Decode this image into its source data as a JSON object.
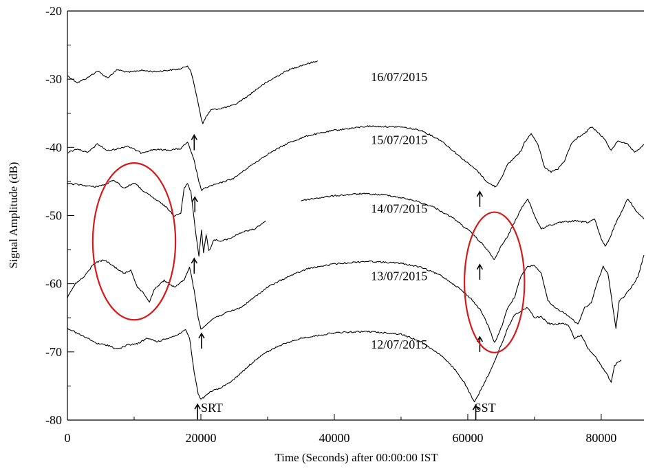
{
  "colors": {
    "line": "#000000",
    "highlight": "#d41a1a",
    "background": "#ffffff"
  },
  "chart_data": {
    "type": "line",
    "title": "",
    "xlabel": "Time (Seconds) after 00:00:00 IST",
    "ylabel": "Signal Amplitude (dB)",
    "xlim": [
      0,
      86400
    ],
    "ylim": [
      -80,
      -20
    ],
    "x_ticks": [
      0,
      20000,
      40000,
      60000,
      80000
    ],
    "y_ticks": [
      -20,
      -30,
      -40,
      -50,
      -60,
      -70,
      -80
    ],
    "grid": false,
    "series": [
      {
        "name": "16/07/2015",
        "points": [
          [
            0,
            -29.5
          ],
          [
            1500,
            -30.5
          ],
          [
            3000,
            -29.8
          ],
          [
            4500,
            -28.8
          ],
          [
            6000,
            -29.8
          ],
          [
            7500,
            -28.6
          ],
          [
            9000,
            -29.0
          ],
          [
            11000,
            -28.7
          ],
          [
            13000,
            -28.9
          ],
          [
            15000,
            -28.7
          ],
          [
            17000,
            -28.5
          ],
          [
            18000,
            -28.0
          ],
          [
            18500,
            -28.8
          ],
          [
            19500,
            -33
          ],
          [
            20000,
            -35.5
          ],
          [
            20300,
            -36.5
          ],
          [
            20800,
            -35.5
          ],
          [
            21500,
            -34.5
          ],
          [
            23000,
            -34.3
          ],
          [
            25000,
            -33.8
          ],
          [
            27000,
            -32.5
          ],
          [
            29000,
            -31.0
          ],
          [
            31000,
            -29.8
          ],
          [
            33000,
            -28.7
          ],
          [
            35000,
            -28.0
          ],
          [
            37500,
            -27.3
          ]
        ]
      },
      {
        "name": "15/07/2015",
        "points": [
          [
            0,
            -40.8
          ],
          [
            1500,
            -40.2
          ],
          [
            3000,
            -40.8
          ],
          [
            4500,
            -39.5
          ],
          [
            6000,
            -40.5
          ],
          [
            7500,
            -40.2
          ],
          [
            9000,
            -39.8
          ],
          [
            11000,
            -40.8
          ],
          [
            13000,
            -40.3
          ],
          [
            15000,
            -40.4
          ],
          [
            17000,
            -40.2
          ],
          [
            18000,
            -39.2
          ],
          [
            19000,
            -42
          ],
          [
            19700,
            -45
          ],
          [
            20100,
            -46.3
          ],
          [
            21000,
            -45.8
          ],
          [
            23000,
            -45.2
          ],
          [
            25000,
            -44.5
          ],
          [
            27000,
            -43.0
          ],
          [
            30000,
            -41.0
          ],
          [
            33000,
            -39.4
          ],
          [
            36000,
            -38.3
          ],
          [
            40000,
            -37.5
          ],
          [
            45000,
            -36.9
          ],
          [
            50000,
            -37.0
          ],
          [
            53000,
            -37.5
          ],
          [
            56000,
            -39.0
          ],
          [
            59000,
            -41.5
          ],
          [
            61500,
            -43.5
          ],
          [
            63000,
            -45.2
          ],
          [
            64200,
            -45.8
          ],
          [
            65000,
            -44.5
          ],
          [
            66000,
            -42.5
          ],
          [
            67000,
            -41.5
          ],
          [
            68000,
            -40.5
          ],
          [
            68500,
            -39.3
          ],
          [
            69500,
            -37.9
          ],
          [
            70500,
            -39.5
          ],
          [
            71500,
            -43.0
          ],
          [
            72500,
            -43.6
          ],
          [
            73500,
            -43.2
          ],
          [
            74500,
            -42.0
          ],
          [
            75500,
            -39.5
          ],
          [
            76500,
            -38.5
          ],
          [
            77500,
            -38.0
          ],
          [
            78500,
            -37.0
          ],
          [
            79500,
            -37.8
          ],
          [
            80500,
            -38.8
          ],
          [
            81500,
            -40.5
          ],
          [
            82500,
            -39.0
          ],
          [
            84000,
            -39.6
          ],
          [
            85000,
            -40.8
          ],
          [
            86400,
            -39.6
          ]
        ]
      },
      {
        "name": "14/07/2015",
        "points": [
          [
            0,
            -45.3
          ],
          [
            2000,
            -45.5
          ],
          [
            4000,
            -45.8
          ],
          [
            5500,
            -45.5
          ],
          [
            7000,
            -44.8
          ],
          [
            8500,
            -46
          ],
          [
            10000,
            -45.2
          ],
          [
            11500,
            -46.5
          ],
          [
            13000,
            -47.5
          ],
          [
            14500,
            -48.5
          ],
          [
            16000,
            -50.0
          ],
          [
            17000,
            -49.6
          ],
          [
            17500,
            -46.0
          ],
          [
            18000,
            -45.3
          ],
          [
            18500,
            -46.5
          ],
          [
            19300,
            -53
          ],
          [
            19700,
            -56
          ],
          [
            20100,
            -52
          ],
          [
            20400,
            -55.5
          ],
          [
            20800,
            -52.8
          ],
          [
            21200,
            -55.2
          ],
          [
            22000,
            -53.5
          ],
          [
            23000,
            -53.8
          ],
          [
            24500,
            -53.3
          ],
          [
            26000,
            -52.5
          ],
          [
            28000,
            -52.0
          ],
          [
            29700,
            -50.8
          ]
        ]
      },
      {
        "name": "14/07/2015 (cont.)",
        "points": [
          [
            35000,
            -47.8
          ],
          [
            37000,
            -47.5
          ],
          [
            40000,
            -47.1
          ],
          [
            44000,
            -46.8
          ],
          [
            48000,
            -47.0
          ],
          [
            52000,
            -47.8
          ],
          [
            55000,
            -48.8
          ],
          [
            58000,
            -50.5
          ],
          [
            60500,
            -52.5
          ],
          [
            62500,
            -54.5
          ],
          [
            64000,
            -56.5
          ],
          [
            65000,
            -54.5
          ],
          [
            66000,
            -53.0
          ],
          [
            67000,
            -51.0
          ],
          [
            68000,
            -49.0
          ],
          [
            69000,
            -47.5
          ],
          [
            70000,
            -50.0
          ],
          [
            71000,
            -52.0
          ],
          [
            72000,
            -51.5
          ],
          [
            74000,
            -51.0
          ],
          [
            76000,
            -50.8
          ],
          [
            78000,
            -51.0
          ],
          [
            79000,
            -50.5
          ],
          [
            80000,
            -53.5
          ],
          [
            80600,
            -54.5
          ],
          [
            81200,
            -53.5
          ],
          [
            82000,
            -51.5
          ],
          [
            83000,
            -49.5
          ],
          [
            84000,
            -47.5
          ],
          [
            85000,
            -49.0
          ],
          [
            86400,
            -50.5
          ]
        ]
      },
      {
        "name": "13/07/2015",
        "points": [
          [
            0,
            -62.0
          ],
          [
            1200,
            -60.0
          ],
          [
            2500,
            -59.0
          ],
          [
            4000,
            -57.0
          ],
          [
            5500,
            -56.5
          ],
          [
            7000,
            -57.5
          ],
          [
            8500,
            -58.5
          ],
          [
            9500,
            -58.0
          ],
          [
            10500,
            -60.5
          ],
          [
            11500,
            -61.5
          ],
          [
            12300,
            -62.7
          ],
          [
            13000,
            -60.8
          ],
          [
            14500,
            -59.5
          ],
          [
            16000,
            -60.5
          ],
          [
            17500,
            -59.5
          ],
          [
            18300,
            -57.5
          ],
          [
            19000,
            -61.0
          ],
          [
            19600,
            -65.0
          ],
          [
            20000,
            -66.6
          ],
          [
            20800,
            -66.0
          ],
          [
            22000,
            -65.0
          ],
          [
            24000,
            -64.2
          ],
          [
            26000,
            -63.5
          ],
          [
            28000,
            -62.0
          ],
          [
            30000,
            -60.5
          ],
          [
            33000,
            -59.0
          ],
          [
            36000,
            -57.8
          ],
          [
            40000,
            -57.1
          ],
          [
            45000,
            -56.7
          ],
          [
            50000,
            -57.0
          ],
          [
            53000,
            -57.6
          ],
          [
            56000,
            -58.8
          ],
          [
            58500,
            -60.5
          ],
          [
            60500,
            -62.2
          ],
          [
            62000,
            -64.0
          ],
          [
            63200,
            -66.5
          ],
          [
            64000,
            -68.7
          ],
          [
            65000,
            -66.5
          ],
          [
            66000,
            -63.5
          ],
          [
            67000,
            -62.0
          ],
          [
            68000,
            -58.8
          ],
          [
            69000,
            -57.5
          ],
          [
            70000,
            -57.3
          ],
          [
            71000,
            -58.5
          ],
          [
            72000,
            -62.5
          ],
          [
            73000,
            -63.5
          ],
          [
            74000,
            -64.0
          ],
          [
            75500,
            -65.0
          ],
          [
            76500,
            -66.0
          ],
          [
            77500,
            -63.5
          ],
          [
            78500,
            -62.8
          ],
          [
            79500,
            -59.5
          ],
          [
            80300,
            -57.5
          ],
          [
            81000,
            -58.5
          ],
          [
            81600,
            -62.5
          ],
          [
            82200,
            -66.5
          ],
          [
            82700,
            -62.5
          ],
          [
            83500,
            -61.8
          ],
          [
            84500,
            -60.5
          ],
          [
            85500,
            -59.0
          ],
          [
            86400,
            -55.8
          ]
        ]
      },
      {
        "name": "12/07/2015",
        "points": [
          [
            0,
            -66.5
          ],
          [
            1500,
            -67.3
          ],
          [
            3000,
            -68.0
          ],
          [
            4500,
            -68.8
          ],
          [
            6000,
            -69.0
          ],
          [
            7500,
            -69.6
          ],
          [
            9000,
            -69.0
          ],
          [
            10500,
            -68.8
          ],
          [
            12000,
            -68.0
          ],
          [
            13500,
            -68.5
          ],
          [
            15000,
            -68.0
          ],
          [
            16500,
            -67.5
          ],
          [
            17700,
            -66.7
          ],
          [
            18300,
            -68.0
          ],
          [
            19000,
            -73.0
          ],
          [
            19600,
            -76.2
          ],
          [
            20000,
            -77.0
          ],
          [
            20700,
            -76.5
          ],
          [
            21500,
            -75.8
          ],
          [
            23000,
            -75.3
          ],
          [
            25000,
            -74.0
          ],
          [
            27000,
            -72.2
          ],
          [
            29000,
            -70.5
          ],
          [
            32000,
            -69.0
          ],
          [
            35000,
            -68.0
          ],
          [
            40000,
            -67.2
          ],
          [
            45000,
            -67.0
          ],
          [
            50000,
            -67.4
          ],
          [
            53000,
            -68.5
          ],
          [
            56000,
            -70.5
          ],
          [
            58000,
            -72.5
          ],
          [
            59500,
            -74.5
          ],
          [
            60500,
            -76.5
          ],
          [
            61000,
            -77.4
          ],
          [
            62000,
            -75.5
          ],
          [
            63000,
            -73.5
          ],
          [
            64000,
            -71.5
          ],
          [
            65000,
            -69.0
          ],
          [
            66000,
            -66.5
          ],
          [
            67000,
            -64.5
          ],
          [
            68000,
            -64.0
          ],
          [
            69000,
            -63.5
          ],
          [
            70000,
            -65.0
          ],
          [
            71000,
            -64.8
          ],
          [
            72000,
            -65.8
          ],
          [
            73000,
            -66.0
          ],
          [
            74000,
            -65.8
          ],
          [
            75000,
            -66.0
          ],
          [
            76000,
            -68.0
          ],
          [
            77000,
            -67.5
          ],
          [
            78000,
            -69.5
          ],
          [
            79000,
            -70.5
          ],
          [
            80000,
            -72.0
          ],
          [
            81000,
            -73.5
          ],
          [
            81500,
            -74.5
          ],
          [
            82000,
            -72.0
          ],
          [
            82500,
            -71.5
          ],
          [
            83000,
            -71.2
          ]
        ]
      }
    ],
    "series_labels": [
      {
        "text": "16/07/2015",
        "x": 45500,
        "y": -30.3
      },
      {
        "text": "15/07/2015",
        "x": 45500,
        "y": -39.5
      },
      {
        "text": "14/07/2015",
        "x": 45500,
        "y": -49.6
      },
      {
        "text": "13/07/2015",
        "x": 45500,
        "y": -59.5
      },
      {
        "text": "12/07/2015",
        "x": 45500,
        "y": -69.5
      }
    ],
    "annotations": [
      {
        "text": "SRT",
        "x": 20000,
        "y": -78.8
      },
      {
        "text": "SST",
        "x": 61000,
        "y": -78.8
      }
    ],
    "arrows": [
      {
        "x": 19000,
        "y_top": -38.2
      },
      {
        "x": 19100,
        "y_top": -47.3
      },
      {
        "x": 19000,
        "y_top": -56.3
      },
      {
        "x": 20100,
        "y_top": -67.3
      },
      {
        "x": 19500,
        "y_top": -77.7
      },
      {
        "x": 61200,
        "y_top": -77.8
      },
      {
        "x": 61800,
        "y_top": -46.5
      },
      {
        "x": 61800,
        "y_top": -57.2
      },
      {
        "x": 61800,
        "y_top": -67.8
      }
    ],
    "highlights": [
      {
        "cx": 10000,
        "cy": -53.8,
        "rx": 6200,
        "ry": 11.5
      },
      {
        "cx": 64000,
        "cy": -59.8,
        "rx": 4500,
        "ry": 10.3
      }
    ]
  }
}
